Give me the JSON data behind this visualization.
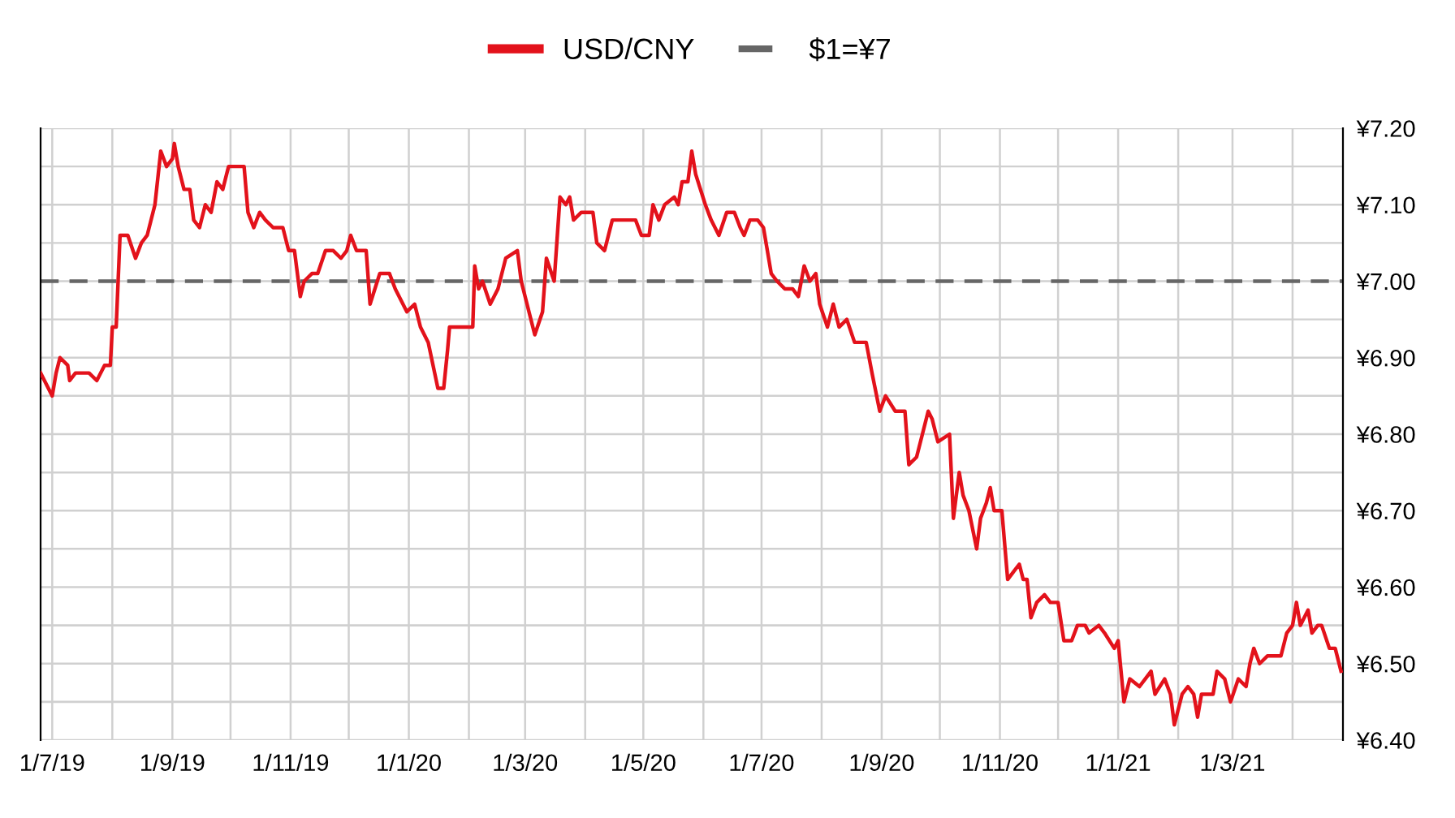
{
  "chart_data": {
    "type": "line",
    "x": [
      "2019-06-25",
      "2019-06-27",
      "2019-07-01",
      "2019-07-03",
      "2019-07-05",
      "2019-07-09",
      "2019-07-10",
      "2019-07-13",
      "2019-07-17",
      "2019-07-20",
      "2019-07-24",
      "2019-07-28",
      "2019-07-31",
      "2019-08-01",
      "2019-08-03",
      "2019-08-05",
      "2019-08-06",
      "2019-08-09",
      "2019-08-13",
      "2019-08-16",
      "2019-08-19",
      "2019-08-23",
      "2019-08-26",
      "2019-08-29",
      "2019-09-01",
      "2019-09-02",
      "2019-09-04",
      "2019-09-07",
      "2019-09-10",
      "2019-09-12",
      "2019-09-15",
      "2019-09-18",
      "2019-09-21",
      "2019-09-24",
      "2019-09-27",
      "2019-09-30",
      "2019-10-08",
      "2019-10-10",
      "2019-10-13",
      "2019-10-16",
      "2019-10-19",
      "2019-10-23",
      "2019-10-28",
      "2019-10-31",
      "2019-11-03",
      "2019-11-06",
      "2019-11-08",
      "2019-11-12",
      "2019-11-15",
      "2019-11-19",
      "2019-11-23",
      "2019-11-27",
      "2019-11-30",
      "2019-12-02",
      "2019-12-05",
      "2019-12-10",
      "2019-12-12",
      "2019-12-17",
      "2019-12-22",
      "2019-12-25",
      "2019-12-31",
      "2020-01-04",
      "2020-01-07",
      "2020-01-11",
      "2020-01-16",
      "2020-01-19",
      "2020-01-21",
      "2020-01-22",
      "2020-02-03",
      "2020-02-04",
      "2020-02-06",
      "2020-02-08",
      "2020-02-12",
      "2020-02-16",
      "2020-02-20",
      "2020-02-26",
      "2020-02-28",
      "2020-03-03",
      "2020-03-06",
      "2020-03-10",
      "2020-03-12",
      "2020-03-16",
      "2020-03-19",
      "2020-03-22",
      "2020-03-24",
      "2020-03-26",
      "2020-03-30",
      "2020-04-05",
      "2020-04-07",
      "2020-04-11",
      "2020-04-15",
      "2020-04-22",
      "2020-04-27",
      "2020-04-30",
      "2020-05-04",
      "2020-05-06",
      "2020-05-09",
      "2020-05-12",
      "2020-05-17",
      "2020-05-19",
      "2020-05-21",
      "2020-05-24",
      "2020-05-26",
      "2020-05-28",
      "2020-06-02",
      "2020-06-05",
      "2020-06-09",
      "2020-06-13",
      "2020-06-17",
      "2020-06-20",
      "2020-06-22",
      "2020-06-25",
      "2020-06-29",
      "2020-07-02",
      "2020-07-06",
      "2020-07-09",
      "2020-07-13",
      "2020-07-17",
      "2020-07-20",
      "2020-07-23",
      "2020-07-26",
      "2020-07-29",
      "2020-07-31",
      "2020-08-04",
      "2020-08-07",
      "2020-08-10",
      "2020-08-14",
      "2020-08-18",
      "2020-08-24",
      "2020-08-27",
      "2020-08-31",
      "2020-09-03",
      "2020-09-08",
      "2020-09-13",
      "2020-09-15",
      "2020-09-19",
      "2020-09-22",
      "2020-09-25",
      "2020-09-27",
      "2020-09-30",
      "2020-10-06",
      "2020-10-08",
      "2020-10-11",
      "2020-10-13",
      "2020-10-16",
      "2020-10-20",
      "2020-10-22",
      "2020-10-25",
      "2020-10-27",
      "2020-10-29",
      "2020-11-02",
      "2020-11-05",
      "2020-11-08",
      "2020-11-11",
      "2020-11-13",
      "2020-11-15",
      "2020-11-17",
      "2020-11-20",
      "2020-11-24",
      "2020-11-27",
      "2020-12-01",
      "2020-12-04",
      "2020-12-08",
      "2020-12-11",
      "2020-12-15",
      "2020-12-17",
      "2020-12-22",
      "2020-12-25",
      "2020-12-30",
      "2021-01-01",
      "2021-01-04",
      "2021-01-07",
      "2021-01-12",
      "2021-01-15",
      "2021-01-18",
      "2021-01-20",
      "2021-01-25",
      "2021-01-28",
      "2021-01-30",
      "2021-02-03",
      "2021-02-06",
      "2021-02-09",
      "2021-02-11",
      "2021-02-13",
      "2021-02-19",
      "2021-02-21",
      "2021-02-25",
      "2021-02-28",
      "2021-03-04",
      "2021-03-08",
      "2021-03-10",
      "2021-03-12",
      "2021-03-15",
      "2021-03-19",
      "2021-03-26",
      "2021-03-29",
      "2021-04-01",
      "2021-04-03",
      "2021-04-05",
      "2021-04-09",
      "2021-04-11",
      "2021-04-14",
      "2021-04-16",
      "2021-04-20",
      "2021-04-23",
      "2021-04-26"
    ],
    "series": [
      {
        "name": "USD/CNY",
        "color": "#e3121b",
        "line_style": "solid",
        "values": [
          6.88,
          6.87,
          6.85,
          6.88,
          6.9,
          6.89,
          6.87,
          6.88,
          6.88,
          6.88,
          6.87,
          6.89,
          6.89,
          6.94,
          6.94,
          7.06,
          7.06,
          7.06,
          7.03,
          7.05,
          7.06,
          7.1,
          7.17,
          7.15,
          7.16,
          7.18,
          7.15,
          7.12,
          7.12,
          7.08,
          7.07,
          7.1,
          7.09,
          7.13,
          7.12,
          7.15,
          7.15,
          7.09,
          7.07,
          7.09,
          7.08,
          7.07,
          7.07,
          7.04,
          7.04,
          6.98,
          7.0,
          7.01,
          7.01,
          7.04,
          7.04,
          7.03,
          7.04,
          7.06,
          7.04,
          7.04,
          6.97,
          7.01,
          7.01,
          6.99,
          6.96,
          6.97,
          6.94,
          6.92,
          6.86,
          6.86,
          6.91,
          6.94,
          6.94,
          7.02,
          6.99,
          7.0,
          6.97,
          6.99,
          7.03,
          7.04,
          7.0,
          6.96,
          6.93,
          6.96,
          7.03,
          7.0,
          7.11,
          7.1,
          7.11,
          7.08,
          7.09,
          7.09,
          7.05,
          7.04,
          7.08,
          7.08,
          7.08,
          7.06,
          7.06,
          7.1,
          7.08,
          7.1,
          7.11,
          7.1,
          7.13,
          7.13,
          7.17,
          7.14,
          7.1,
          7.08,
          7.06,
          7.09,
          7.09,
          7.07,
          7.06,
          7.08,
          7.08,
          7.07,
          7.01,
          7.0,
          6.99,
          6.99,
          6.98,
          7.02,
          7.0,
          7.01,
          6.97,
          6.94,
          6.97,
          6.94,
          6.95,
          6.92,
          6.92,
          6.88,
          6.83,
          6.85,
          6.83,
          6.83,
          6.76,
          6.77,
          6.8,
          6.83,
          6.82,
          6.79,
          6.8,
          6.69,
          6.75,
          6.72,
          6.7,
          6.65,
          6.69,
          6.71,
          6.73,
          6.7,
          6.7,
          6.61,
          6.62,
          6.63,
          6.61,
          6.61,
          6.56,
          6.58,
          6.59,
          6.58,
          6.58,
          6.53,
          6.53,
          6.55,
          6.55,
          6.54,
          6.55,
          6.54,
          6.52,
          6.53,
          6.45,
          6.48,
          6.47,
          6.48,
          6.49,
          6.46,
          6.48,
          6.46,
          6.42,
          6.46,
          6.47,
          6.46,
          6.43,
          6.46,
          6.46,
          6.49,
          6.48,
          6.45,
          6.48,
          6.47,
          6.5,
          6.52,
          6.5,
          6.51,
          6.51,
          6.54,
          6.55,
          6.58,
          6.55,
          6.57,
          6.54,
          6.55,
          6.55,
          6.52,
          6.52,
          6.49
        ]
      }
    ],
    "ref_lines": [
      {
        "axis": "y",
        "value": 7.0,
        "label": "$1=¥7",
        "color": "#666666",
        "line_style": "dashed"
      }
    ],
    "xlim": [
      "2019-06-25",
      "2021-04-27"
    ],
    "xticks": [
      {
        "value": "2019-07-01",
        "label": "1/7/19"
      },
      {
        "value": "2019-08-01",
        "label": null
      },
      {
        "value": "2019-09-01",
        "label": "1/9/19"
      },
      {
        "value": "2019-10-01",
        "label": null
      },
      {
        "value": "2019-11-01",
        "label": "1/11/19"
      },
      {
        "value": "2019-12-01",
        "label": null
      },
      {
        "value": "2020-01-01",
        "label": "1/1/20"
      },
      {
        "value": "2020-02-01",
        "label": null
      },
      {
        "value": "2020-03-01",
        "label": "1/3/20"
      },
      {
        "value": "2020-04-01",
        "label": null
      },
      {
        "value": "2020-05-01",
        "label": "1/5/20"
      },
      {
        "value": "2020-06-01",
        "label": null
      },
      {
        "value": "2020-07-01",
        "label": "1/7/20"
      },
      {
        "value": "2020-08-01",
        "label": null
      },
      {
        "value": "2020-09-01",
        "label": "1/9/20"
      },
      {
        "value": "2020-10-01",
        "label": null
      },
      {
        "value": "2020-11-01",
        "label": "1/11/20"
      },
      {
        "value": "2020-12-01",
        "label": null
      },
      {
        "value": "2021-01-01",
        "label": "1/1/21"
      },
      {
        "value": "2021-02-01",
        "label": null
      },
      {
        "value": "2021-03-01",
        "label": "1/3/21"
      },
      {
        "value": "2021-04-01",
        "label": null
      }
    ],
    "ylim": [
      6.4,
      7.2
    ],
    "yticks": [
      {
        "value": 6.4,
        "label": "¥6.40"
      },
      {
        "value": 6.45,
        "label": null
      },
      {
        "value": 6.5,
        "label": "¥6.50"
      },
      {
        "value": 6.55,
        "label": null
      },
      {
        "value": 6.6,
        "label": "¥6.60"
      },
      {
        "value": 6.65,
        "label": null
      },
      {
        "value": 6.7,
        "label": "¥6.70"
      },
      {
        "value": 6.75,
        "label": null
      },
      {
        "value": 6.8,
        "label": "¥6.80"
      },
      {
        "value": 6.85,
        "label": null
      },
      {
        "value": 6.9,
        "label": "¥6.90"
      },
      {
        "value": 6.95,
        "label": null
      },
      {
        "value": 7.0,
        "label": "¥7.00"
      },
      {
        "value": 7.05,
        "label": null
      },
      {
        "value": 7.1,
        "label": "¥7.10"
      },
      {
        "value": 7.15,
        "label": null
      },
      {
        "value": 7.2,
        "label": "¥7.20"
      }
    ],
    "grid": true,
    "legend": "top"
  }
}
